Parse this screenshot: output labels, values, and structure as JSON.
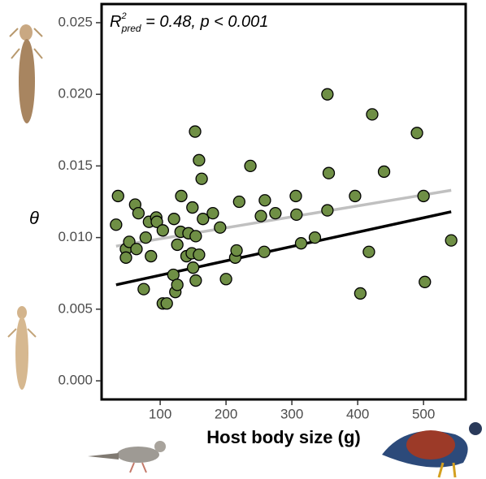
{
  "chart_data": {
    "type": "scatter",
    "annotation": {
      "base": "R",
      "sup": "2",
      "sub": "pred",
      "rest": " = 0.48, p < 0.001"
    },
    "xlabel": "Host body size (g)",
    "ylabel": "θ",
    "xlim": [
      11,
      564
    ],
    "ylim": [
      -0.0013,
      0.0263
    ],
    "xticks": [
      100,
      200,
      300,
      400,
      500
    ],
    "yticks": [
      {
        "value": 0,
        "label": "0.000"
      },
      0.005,
      {
        "value": 0.01,
        "label": "0.010"
      },
      0.015,
      {
        "value": 0.02,
        "label": "0.020"
      },
      0.025
    ],
    "color": "#6f8f45",
    "x": [
      36,
      33,
      48,
      53,
      48,
      62,
      67,
      64,
      78,
      83,
      86,
      75,
      94,
      95,
      104,
      104,
      110,
      120,
      121,
      126,
      123,
      126,
      131,
      132,
      140,
      143,
      149,
      153,
      148,
      154,
      150,
      154,
      159,
      163,
      165,
      159,
      180,
      191,
      200,
      214,
      216,
      220,
      237,
      253,
      259,
      258,
      275,
      306,
      307,
      314,
      335,
      354,
      356,
      354,
      396,
      404,
      417,
      422,
      440,
      490,
      500,
      502,
      542
    ],
    "values": [
      0.0129,
      0.0109,
      0.0092,
      0.0097,
      0.0086,
      0.0123,
      0.0117,
      0.0092,
      0.01,
      0.0111,
      0.0087,
      0.0064,
      0.0114,
      0.0111,
      0.0105,
      0.0054,
      0.0054,
      0.0074,
      0.0113,
      0.0095,
      0.0062,
      0.0067,
      0.0104,
      0.0129,
      0.0087,
      0.0103,
      0.0121,
      0.0174,
      0.0089,
      0.0101,
      0.0079,
      0.007,
      0.0154,
      0.0141,
      0.0113,
      0.0088,
      0.0117,
      0.0107,
      0.0071,
      0.0086,
      0.0091,
      0.0125,
      0.015,
      0.0115,
      0.0126,
      0.009,
      0.0117,
      0.0129,
      0.0116,
      0.0096,
      0.01,
      0.02,
      0.0145,
      0.0119,
      0.0129,
      0.0061,
      0.009,
      0.0186,
      0.0146,
      0.0173,
      0.0129,
      0.0069,
      0.0098
    ],
    "lines": [
      {
        "color": "#c0c0c0",
        "x": [
          33,
          542
        ],
        "values": [
          0.0094,
          0.0133
        ]
      },
      {
        "color": "#000000",
        "x": [
          33,
          542
        ],
        "values": [
          0.0067,
          0.0118
        ]
      }
    ]
  }
}
